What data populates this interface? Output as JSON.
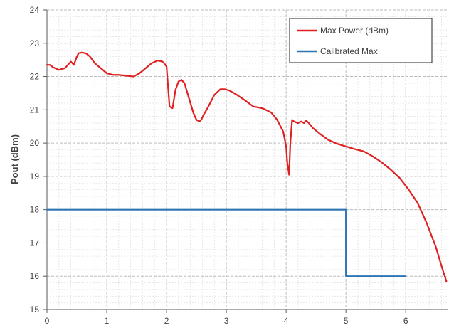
{
  "chart_data": {
    "type": "line",
    "title": "",
    "xlabel": "",
    "ylabel": "Pout (dBm)",
    "xlim": [
      0,
      6.7
    ],
    "ylim": [
      15,
      24
    ],
    "x_ticks": [
      0,
      1,
      2,
      3,
      4,
      5,
      6
    ],
    "y_ticks": [
      15,
      16,
      17,
      18,
      19,
      20,
      21,
      22,
      23,
      24
    ],
    "grid": true,
    "grid_style": "dashed",
    "legend_position": "top-right",
    "series": [
      {
        "name": "Max Power (dBm)",
        "color": "#e02020",
        "x": [
          0,
          0.05,
          0.1,
          0.2,
          0.3,
          0.35,
          0.4,
          0.45,
          0.5,
          0.53,
          0.58,
          0.65,
          0.72,
          0.8,
          0.9,
          1.0,
          1.1,
          1.2,
          1.35,
          1.45,
          1.55,
          1.65,
          1.75,
          1.85,
          1.93,
          1.96,
          2.0,
          2.05,
          2.1,
          2.15,
          2.2,
          2.25,
          2.3,
          2.35,
          2.45,
          2.5,
          2.55,
          2.58,
          2.62,
          2.7,
          2.8,
          2.9,
          2.97,
          3.05,
          3.15,
          3.3,
          3.45,
          3.6,
          3.75,
          3.85,
          3.95,
          4.0,
          4.02,
          4.05,
          4.07,
          4.1,
          4.13,
          4.2,
          4.25,
          4.3,
          4.33,
          4.37,
          4.45,
          4.55,
          4.7,
          4.85,
          5.0,
          5.15,
          5.3,
          5.45,
          5.6,
          5.75,
          5.9,
          6.05,
          6.2,
          6.35,
          6.5,
          6.6,
          6.68
        ],
        "y": [
          22.35,
          22.35,
          22.28,
          22.2,
          22.25,
          22.35,
          22.45,
          22.35,
          22.6,
          22.7,
          22.72,
          22.7,
          22.6,
          22.4,
          22.25,
          22.1,
          22.05,
          22.05,
          22.02,
          22.0,
          22.1,
          22.25,
          22.4,
          22.48,
          22.45,
          22.4,
          22.3,
          21.1,
          21.05,
          21.6,
          21.85,
          21.9,
          21.8,
          21.5,
          20.9,
          20.7,
          20.65,
          20.7,
          20.85,
          21.1,
          21.45,
          21.62,
          21.62,
          21.58,
          21.48,
          21.3,
          21.1,
          21.05,
          20.92,
          20.7,
          20.35,
          19.9,
          19.4,
          19.05,
          20.0,
          20.7,
          20.65,
          20.6,
          20.65,
          20.6,
          20.68,
          20.62,
          20.45,
          20.3,
          20.1,
          19.98,
          19.9,
          19.82,
          19.75,
          19.6,
          19.42,
          19.2,
          18.95,
          18.6,
          18.2,
          17.6,
          16.9,
          16.3,
          15.85
        ]
      },
      {
        "name": "Calibrated Max",
        "color": "#2e75b6",
        "x": [
          0,
          5.0,
          5.0,
          6.0
        ],
        "y": [
          18,
          18,
          16,
          16
        ]
      }
    ]
  }
}
